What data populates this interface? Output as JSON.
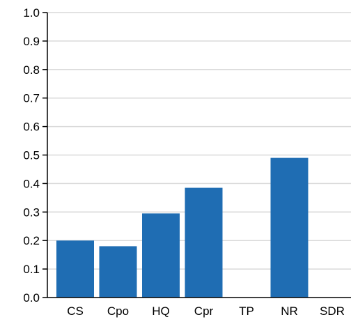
{
  "chart_data": {
    "type": "bar",
    "categories": [
      "CS",
      "Cpo",
      "HQ",
      "Cpr",
      "TP",
      "NR",
      "SDR"
    ],
    "values": [
      0.2,
      0.18,
      0.295,
      0.385,
      0,
      0.49,
      0
    ],
    "ylim": [
      0,
      1.0
    ],
    "yticks": [
      "0.0",
      "0.1",
      "0.2",
      "0.3",
      "0.4",
      "0.5",
      "0.6",
      "0.7",
      "0.8",
      "0.9",
      "1.0"
    ],
    "grid": true,
    "bar_color": "#1f6db3",
    "grid_color": "#d9d9d9",
    "axis_color": "#000000"
  }
}
